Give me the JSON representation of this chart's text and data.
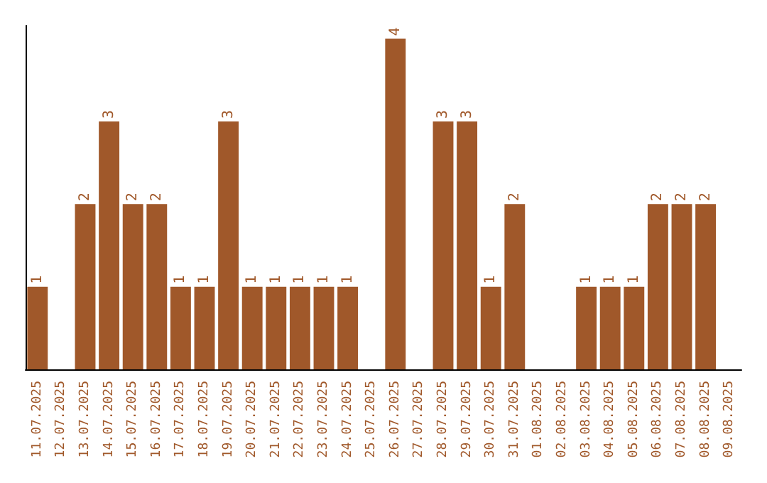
{
  "chart_data": {
    "type": "bar",
    "categories": [
      "11.07.2025",
      "12.07.2025",
      "13.07.2025",
      "14.07.2025",
      "15.07.2025",
      "16.07.2025",
      "17.07.2025",
      "18.07.2025",
      "19.07.2025",
      "20.07.2025",
      "21.07.2025",
      "22.07.2025",
      "23.07.2025",
      "24.07.2025",
      "25.07.2025",
      "26.07.2025",
      "27.07.2025",
      "28.07.2025",
      "29.07.2025",
      "30.07.2025",
      "31.07.2025",
      "01.08.2025",
      "02.08.2025",
      "03.08.2025",
      "04.08.2025",
      "05.08.2025",
      "06.08.2025",
      "07.08.2025",
      "08.08.2025",
      "09.08.2025"
    ],
    "values": [
      1,
      0,
      2,
      3,
      2,
      2,
      1,
      1,
      3,
      1,
      1,
      1,
      1,
      1,
      0,
      4,
      0,
      3,
      3,
      1,
      2,
      0,
      0,
      1,
      1,
      1,
      2,
      2,
      2,
      0
    ],
    "value_labels": [
      "1",
      null,
      "2",
      "3",
      "2",
      "2",
      "1",
      "1",
      "3",
      "1",
      "1",
      "1",
      "1",
      "1",
      null,
      "4",
      null,
      "3",
      "3",
      "1",
      "2",
      null,
      null,
      "1",
      "1",
      "1",
      "2",
      "2",
      "2",
      null
    ],
    "color": "#a0582a",
    "grid": false,
    "tick_labels": "x"
  }
}
